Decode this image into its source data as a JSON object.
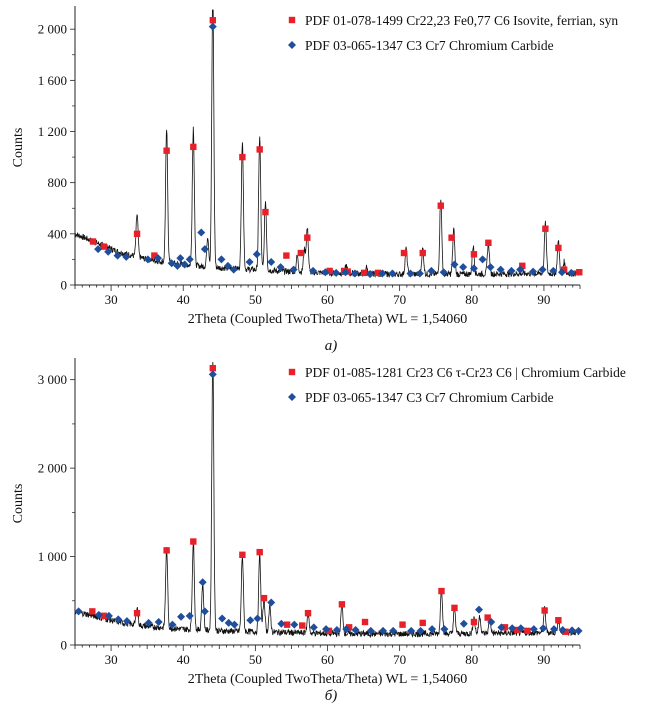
{
  "charts": [
    {
      "type": "line",
      "panel_label": "a)",
      "xlabel": "2Theta (Coupled TwoTheta/Theta) WL = 1,54060",
      "ylabel": "Counts",
      "xlim": [
        25,
        95
      ],
      "ylim": [
        0,
        2150
      ],
      "xticks": [
        30,
        40,
        50,
        60,
        70,
        80,
        90
      ],
      "xtick_labels": [
        "30",
        "40",
        "50",
        "60",
        "70",
        "80",
        "90"
      ],
      "yticks": [
        0,
        400,
        800,
        1200,
        1600,
        2000
      ],
      "ytick_labels": [
        "0",
        "400",
        "800",
        "1 200",
        "1 600",
        "2 000"
      ],
      "legend": [
        {
          "label": "PDF 01-078-1499 Cr22,23 Fe0,77 C6 Isovite, ferrian, syn",
          "marker": "square",
          "color": "#e8202a"
        },
        {
          "label": "PDF 03-065-1347 C3 Cr7 Chromium Carbide",
          "marker": "diamond",
          "color": "#1f4e9c"
        }
      ],
      "baseline": [
        [
          25,
          400
        ],
        [
          28,
          330
        ],
        [
          31,
          260
        ],
        [
          35,
          200
        ],
        [
          40,
          160
        ],
        [
          45,
          135
        ],
        [
          50,
          120
        ],
        [
          55,
          105
        ],
        [
          60,
          95
        ],
        [
          70,
          85
        ],
        [
          80,
          85
        ],
        [
          90,
          90
        ],
        [
          95,
          92
        ]
      ],
      "peaks": [
        [
          33.6,
          330
        ],
        [
          37.7,
          1040
        ],
        [
          41.4,
          1080
        ],
        [
          43.4,
          240
        ],
        [
          44.1,
          2150
        ],
        [
          48.2,
          1000
        ],
        [
          50.6,
          1050
        ],
        [
          51.4,
          540
        ],
        [
          55.8,
          120
        ],
        [
          56.8,
          170
        ],
        [
          57.2,
          340
        ],
        [
          62.6,
          60
        ],
        [
          65.4,
          50
        ],
        [
          70.9,
          200
        ],
        [
          73.2,
          200
        ],
        [
          75.7,
          600
        ],
        [
          77.5,
          350
        ],
        [
          80.2,
          220
        ],
        [
          82.3,
          250
        ],
        [
          90.2,
          390
        ],
        [
          92.0,
          250
        ],
        [
          92.8,
          90
        ]
      ],
      "series": [
        {
          "name": "PDF 01-078-1499",
          "marker": "square",
          "color": "#e8202a",
          "points": [
            [
              27.5,
              340
            ],
            [
              29.0,
              300
            ],
            [
              33.6,
              400
            ],
            [
              36.0,
              230
            ],
            [
              37.7,
              1050
            ],
            [
              41.4,
              1080
            ],
            [
              44.1,
              2070
            ],
            [
              48.2,
              1000
            ],
            [
              50.6,
              1060
            ],
            [
              51.4,
              570
            ],
            [
              54.3,
              230
            ],
            [
              56.3,
              250
            ],
            [
              57.2,
              370
            ],
            [
              60.3,
              110
            ],
            [
              62.3,
              110
            ],
            [
              62.8,
              105
            ],
            [
              65.1,
              95
            ],
            [
              67.0,
              95
            ],
            [
              70.6,
              250
            ],
            [
              73.2,
              250
            ],
            [
              75.7,
              620
            ],
            [
              77.2,
              370
            ],
            [
              80.3,
              240
            ],
            [
              82.3,
              330
            ],
            [
              87.0,
              150
            ],
            [
              90.2,
              440
            ],
            [
              92.0,
              290
            ],
            [
              92.8,
              120
            ],
            [
              94.9,
              100
            ]
          ]
        },
        {
          "name": "PDF 03-065-1347",
          "marker": "diamond",
          "color": "#1f4e9c",
          "points": [
            [
              28.2,
              280
            ],
            [
              29.6,
              260
            ],
            [
              30.9,
              230
            ],
            [
              32.1,
              220
            ],
            [
              35.1,
              200
            ],
            [
              36.5,
              210
            ],
            [
              38.4,
              170
            ],
            [
              39.2,
              150
            ],
            [
              39.6,
              210
            ],
            [
              40.2,
              160
            ],
            [
              40.9,
              200
            ],
            [
              42.5,
              410
            ],
            [
              43.0,
              280
            ],
            [
              44.1,
              2020
            ],
            [
              45.3,
              200
            ],
            [
              46.2,
              150
            ],
            [
              47.0,
              120
            ],
            [
              49.2,
              180
            ],
            [
              50.2,
              240
            ],
            [
              52.2,
              180
            ],
            [
              53.5,
              140
            ],
            [
              55.3,
              120
            ],
            [
              58.0,
              110
            ],
            [
              59.7,
              100
            ],
            [
              61.2,
              95
            ],
            [
              62.5,
              100
            ],
            [
              63.8,
              90
            ],
            [
              65.9,
              85
            ],
            [
              67.6,
              90
            ],
            [
              69.0,
              90
            ],
            [
              71.5,
              90
            ],
            [
              72.8,
              90
            ],
            [
              74.4,
              110
            ],
            [
              76.1,
              100
            ],
            [
              77.6,
              160
            ],
            [
              78.8,
              140
            ],
            [
              80.3,
              130
            ],
            [
              81.5,
              200
            ],
            [
              82.6,
              140
            ],
            [
              84.0,
              120
            ],
            [
              85.5,
              110
            ],
            [
              86.7,
              120
            ],
            [
              88.5,
              105
            ],
            [
              89.8,
              120
            ],
            [
              91.3,
              110
            ],
            [
              92.5,
              100
            ],
            [
              93.8,
              95
            ]
          ]
        }
      ]
    },
    {
      "type": "line",
      "panel_label": "б)",
      "xlabel": "2Theta (Coupled TwoTheta/Theta) WL = 1,54060",
      "ylabel": "Counts",
      "xlim": [
        25,
        95
      ],
      "ylim": [
        0,
        3200
      ],
      "xticks": [
        30,
        40,
        50,
        60,
        70,
        80,
        90
      ],
      "xtick_labels": [
        "30",
        "40",
        "50",
        "60",
        "70",
        "80",
        "90"
      ],
      "yticks": [
        0,
        1000,
        2000,
        3000
      ],
      "ytick_labels": [
        "0",
        "1 000",
        "2 000",
        "3 000"
      ],
      "legend": [
        {
          "label": "PDF 01-085-1281 Cr23 C6 τ-Cr23 C6 | Chromium Carbide",
          "marker": "square",
          "color": "#e8202a"
        },
        {
          "label": "PDF 03-065-1347 C3 Cr7 Chromium Carbide",
          "marker": "diamond",
          "color": "#1f4e9c"
        }
      ],
      "baseline": [
        [
          25,
          380
        ],
        [
          28,
          320
        ],
        [
          31,
          260
        ],
        [
          35,
          210
        ],
        [
          40,
          180
        ],
        [
          45,
          160
        ],
        [
          50,
          150
        ],
        [
          55,
          140
        ],
        [
          60,
          130
        ],
        [
          70,
          125
        ],
        [
          80,
          130
        ],
        [
          90,
          140
        ],
        [
          95,
          145
        ]
      ],
      "peaks": [
        [
          33.6,
          200
        ],
        [
          37.7,
          900
        ],
        [
          41.4,
          1000
        ],
        [
          42.7,
          520
        ],
        [
          44.1,
          3100
        ],
        [
          48.2,
          860
        ],
        [
          50.6,
          880
        ],
        [
          51.2,
          380
        ],
        [
          52.0,
          280
        ],
        [
          57.3,
          230
        ],
        [
          62.0,
          330
        ],
        [
          75.8,
          520
        ],
        [
          77.6,
          270
        ],
        [
          80.3,
          180
        ],
        [
          81.1,
          200
        ],
        [
          82.5,
          160
        ],
        [
          90.1,
          270
        ],
        [
          92.0,
          130
        ]
      ],
      "series": [
        {
          "name": "PDF 01-085-1281",
          "marker": "square",
          "color": "#e8202a",
          "points": [
            [
              27.4,
              380
            ],
            [
              29.0,
              330
            ],
            [
              33.6,
              360
            ],
            [
              37.7,
              1070
            ],
            [
              41.4,
              1170
            ],
            [
              44.1,
              3130
            ],
            [
              48.2,
              1020
            ],
            [
              50.6,
              1050
            ],
            [
              51.2,
              530
            ],
            [
              54.4,
              230
            ],
            [
              56.5,
              220
            ],
            [
              57.3,
              360
            ],
            [
              60.2,
              160
            ],
            [
              62.0,
              460
            ],
            [
              63.0,
              200
            ],
            [
              65.2,
              260
            ],
            [
              70.4,
              230
            ],
            [
              73.2,
              250
            ],
            [
              75.8,
              610
            ],
            [
              77.6,
              420
            ],
            [
              80.3,
              260
            ],
            [
              82.2,
              310
            ],
            [
              84.6,
              200
            ],
            [
              86.3,
              170
            ],
            [
              87.7,
              160
            ],
            [
              90.1,
              390
            ],
            [
              92.0,
              280
            ],
            [
              93.0,
              150
            ]
          ]
        },
        {
          "name": "PDF 03-065-1347",
          "marker": "diamond",
          "color": "#1f4e9c",
          "points": [
            [
              25.5,
              380
            ],
            [
              28.3,
              340
            ],
            [
              29.7,
              330
            ],
            [
              31.0,
              290
            ],
            [
              32.2,
              270
            ],
            [
              35.2,
              250
            ],
            [
              36.6,
              260
            ],
            [
              38.5,
              230
            ],
            [
              39.7,
              320
            ],
            [
              40.9,
              330
            ],
            [
              42.7,
              710
            ],
            [
              43.0,
              380
            ],
            [
              44.1,
              3060
            ],
            [
              45.4,
              300
            ],
            [
              46.3,
              250
            ],
            [
              47.1,
              230
            ],
            [
              49.3,
              280
            ],
            [
              50.3,
              300
            ],
            [
              52.2,
              480
            ],
            [
              53.6,
              240
            ],
            [
              55.4,
              230
            ],
            [
              58.1,
              200
            ],
            [
              59.8,
              180
            ],
            [
              61.3,
              170
            ],
            [
              62.6,
              180
            ],
            [
              63.9,
              170
            ],
            [
              66.0,
              160
            ],
            [
              67.7,
              160
            ],
            [
              69.1,
              160
            ],
            [
              71.6,
              160
            ],
            [
              72.9,
              160
            ],
            [
              74.5,
              180
            ],
            [
              76.2,
              180
            ],
            [
              78.9,
              240
            ],
            [
              81.0,
              400
            ],
            [
              82.7,
              260
            ],
            [
              84.1,
              200
            ],
            [
              85.6,
              190
            ],
            [
              86.8,
              190
            ],
            [
              88.6,
              180
            ],
            [
              89.9,
              190
            ],
            [
              91.4,
              180
            ],
            [
              92.6,
              170
            ],
            [
              93.9,
              165
            ],
            [
              94.8,
              160
            ]
          ]
        }
      ]
    }
  ]
}
